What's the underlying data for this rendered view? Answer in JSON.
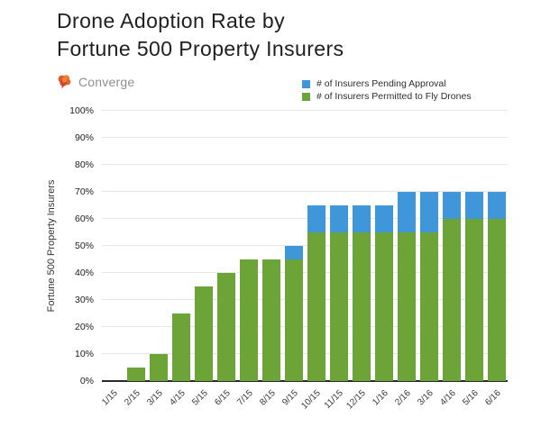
{
  "title": {
    "line1": "Drone Adoption Rate by",
    "line2": "Fortune 500 Property Insurers"
  },
  "logo": {
    "text": "Converge",
    "icon": "brain-icon"
  },
  "legend": [
    {
      "label": "# of Insurers Pending Approval",
      "color": "#3f97d9"
    },
    {
      "label": "# of Insurers Permitted to Fly Drones",
      "color": "#6ca437"
    }
  ],
  "chart_data": {
    "type": "bar",
    "stacked": true,
    "title": "Drone Adoption Rate by Fortune 500 Property Insurers",
    "xlabel": "",
    "ylabel": "Fortune 500 Property Insurers",
    "ylim": [
      0,
      100
    ],
    "ytick_step": 10,
    "ytick_labels": [
      "0%",
      "10%",
      "20%",
      "30%",
      "40%",
      "50%",
      "60%",
      "70%",
      "80%",
      "90%",
      "100%"
    ],
    "grid": true,
    "legend_position": "top-right",
    "categories": [
      "1/15",
      "2/15",
      "3/15",
      "4/15",
      "5/15",
      "6/15",
      "7/15",
      "8/15",
      "9/15",
      "10/15",
      "11/15",
      "12/15",
      "1/16",
      "2/16",
      "3/16",
      "4/16",
      "5/16",
      "6/16"
    ],
    "series": [
      {
        "name": "# of Insurers Permitted to Fly Drones",
        "color": "#6ca437",
        "values": [
          0,
          5,
          10,
          25,
          35,
          40,
          45,
          45,
          45,
          55,
          55,
          55,
          55,
          55,
          55,
          60,
          60,
          60
        ]
      },
      {
        "name": "# of Insurers Pending Approval",
        "color": "#3f97d9",
        "values": [
          0,
          0,
          0,
          0,
          0,
          0,
          0,
          0,
          5,
          10,
          10,
          10,
          10,
          15,
          15,
          10,
          10,
          10
        ]
      }
    ],
    "totals": [
      0,
      5,
      10,
      25,
      35,
      40,
      45,
      45,
      50,
      65,
      65,
      65,
      65,
      70,
      70,
      70,
      70,
      70
    ]
  }
}
